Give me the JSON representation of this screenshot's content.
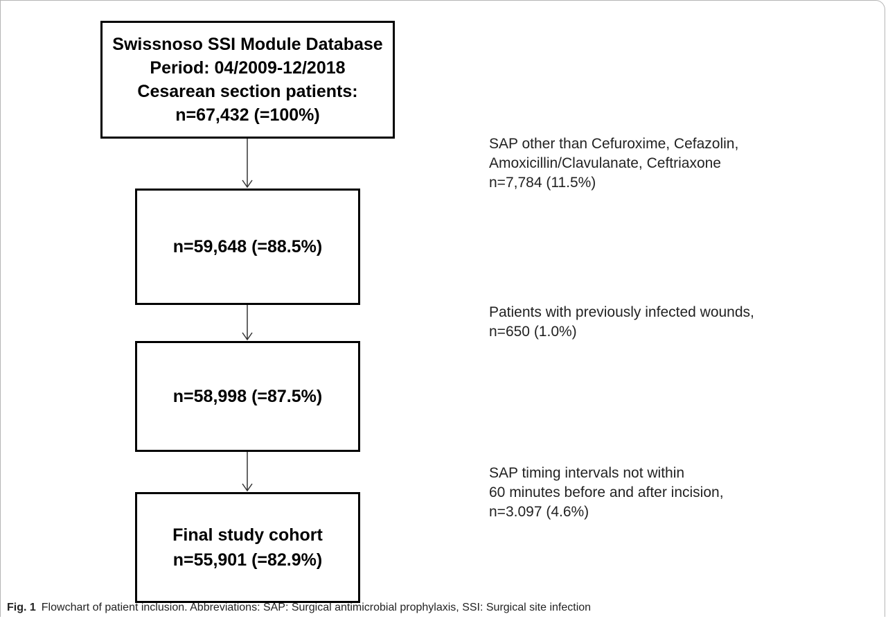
{
  "flowchart": {
    "source_box": {
      "lines": [
        "Swissnoso SSI Module Database",
        "Period: 04/2009-12/2018",
        "Cesarean section patients:",
        "n=67,432 (=100%)"
      ]
    },
    "step2_box": {
      "label": "n=59,648 (=88.5%)"
    },
    "step3_box": {
      "label": "n=58,998 (=87.5%)"
    },
    "final_box": {
      "lines": [
        "Final study cohort",
        "n=55,901 (=82.9%)"
      ]
    },
    "exclusions": [
      {
        "lines": [
          "SAP other than Cefuroxime, Cefazolin,",
          "Amoxicillin/Clavulanate, Ceftriaxone",
          "n=7,784 (11.5%)"
        ]
      },
      {
        "lines": [
          "Patients with previously infected wounds,",
          "n=650 (1.0%)"
        ]
      },
      {
        "lines": [
          "SAP timing intervals not within",
          "60 minutes before and after incision,",
          "n=3.097 (4.6%)"
        ]
      }
    ]
  },
  "caption": {
    "label": "Fig. 1",
    "text": "Flowchart of patient inclusion. Abbreviations: SAP: Surgical antimicrobial prophylaxis, SSI: Surgical site infection"
  }
}
